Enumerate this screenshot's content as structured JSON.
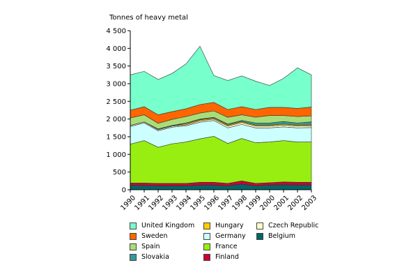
{
  "chart_data": {
    "type": "area",
    "stacked": true,
    "ylabel": "Tonnes of heavy metal",
    "ylim": [
      0,
      4500
    ],
    "yticks": [
      0,
      500,
      1000,
      1500,
      2000,
      2500,
      3000,
      3500,
      4000,
      4500
    ],
    "ytick_labels": [
      "0",
      "500",
      "1 000",
      "1 500",
      "2 000",
      "2 500",
      "3 000",
      "3 500",
      "4 000",
      "4 500"
    ],
    "x": [
      "1990",
      "1991",
      "1992",
      "1993",
      "1994",
      "1995",
      "1996",
      "1997",
      "1998",
      "1999",
      "2000",
      "2001",
      "2002",
      "2003"
    ],
    "legend_position": "bottom",
    "series": [
      {
        "name": "Belgium",
        "color": "#006666",
        "values": [
          120,
          120,
          110,
          110,
          110,
          130,
          130,
          110,
          160,
          110,
          130,
          140,
          130,
          130
        ]
      },
      {
        "name": "Finland",
        "color": "#cc0033",
        "values": [
          70,
          70,
          70,
          70,
          70,
          80,
          80,
          70,
          90,
          70,
          70,
          80,
          80,
          80
        ]
      },
      {
        "name": "France",
        "color": "#99ee11",
        "values": [
          1100,
          1200,
          1020,
          1120,
          1170,
          1230,
          1300,
          1130,
          1200,
          1150,
          1150,
          1170,
          1140,
          1140
        ]
      },
      {
        "name": "Germany",
        "color": "#ccffff",
        "values": [
          500,
          500,
          470,
          470,
          460,
          470,
          450,
          440,
          400,
          420,
          400,
          390,
          400,
          410
        ]
      },
      {
        "name": "Czech Republic",
        "color": "#ffffcc",
        "values": [
          30,
          30,
          30,
          30,
          30,
          40,
          40,
          50,
          50,
          50,
          50,
          50,
          50,
          50
        ]
      },
      {
        "name": "Hungary",
        "color": "#ffcc00",
        "values": [
          0,
          0,
          0,
          0,
          30,
          30,
          30,
          30,
          30,
          30,
          30,
          30,
          30,
          30
        ]
      },
      {
        "name": "Slovakia",
        "color": "#339999",
        "values": [
          0,
          0,
          20,
          20,
          20,
          20,
          20,
          30,
          30,
          60,
          60,
          70,
          60,
          80
        ]
      },
      {
        "name": "Spain",
        "color": "#aadd77",
        "values": [
          210,
          200,
          160,
          170,
          180,
          170,
          180,
          190,
          160,
          160,
          210,
          170,
          180,
          170
        ]
      },
      {
        "name": "Sweden",
        "color": "#ff6600",
        "values": [
          220,
          230,
          240,
          220,
          220,
          240,
          240,
          220,
          230,
          220,
          230,
          230,
          230,
          250
        ]
      },
      {
        "name": "United Kingdom",
        "color": "#77ffcc",
        "values": [
          1000,
          1000,
          1000,
          1080,
          1270,
          1650,
          760,
          820,
          870,
          800,
          620,
          820,
          1150,
          910
        ]
      }
    ]
  },
  "legend_order": [
    [
      "United Kingdom",
      "Hungary",
      "Czech Republic"
    ],
    [
      "Sweden",
      "Germany",
      "Belgium"
    ],
    [
      "Spain",
      "France"
    ],
    [
      "Slovakia",
      "Finland"
    ]
  ]
}
